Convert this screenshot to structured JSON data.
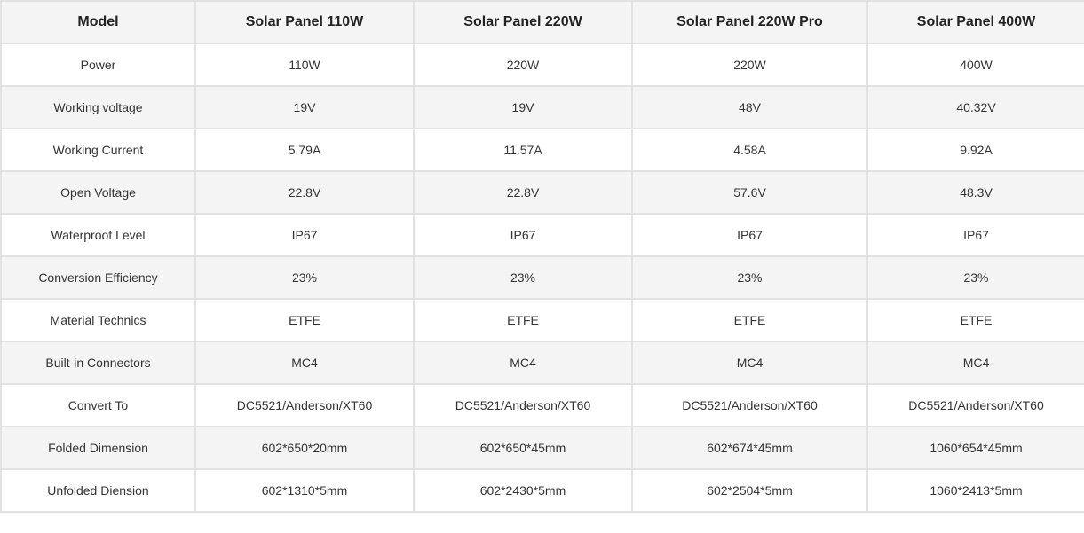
{
  "table": {
    "header": [
      "Model",
      "Solar Panel 110W",
      "Solar Panel 220W",
      "Solar Panel 220W Pro",
      "Solar Panel 400W"
    ],
    "rows": [
      [
        "Power",
        "110W",
        "220W",
        "220W",
        "400W"
      ],
      [
        "Working voltage",
        "19V",
        "19V",
        "48V",
        "40.32V"
      ],
      [
        "Working Current",
        "5.79A",
        "11.57A",
        "4.58A",
        "9.92A"
      ],
      [
        "Open Voltage",
        "22.8V",
        "22.8V",
        "57.6V",
        "48.3V"
      ],
      [
        "Waterproof Level",
        "IP67",
        "IP67",
        "IP67",
        "IP67"
      ],
      [
        "Conversion Efficiency",
        "23%",
        "23%",
        "23%",
        "23%"
      ],
      [
        "Material Technics",
        "ETFE",
        "ETFE",
        "ETFE",
        "ETFE"
      ],
      [
        "Built-in Connectors",
        "MC4",
        "MC4",
        "MC4",
        "MC4"
      ],
      [
        "Convert To",
        "DC5521/Anderson/XT60",
        "DC5521/Anderson/XT60",
        "DC5521/Anderson/XT60",
        "DC5521/Anderson/XT60"
      ],
      [
        "Folded Dimension",
        "602*650*20mm",
        "602*650*45mm",
        "602*674*45mm",
        "1060*654*45mm"
      ],
      [
        "Unfolded Diension",
        "602*1310*5mm",
        "602*2430*5mm",
        "602*2504*5mm",
        "1060*2413*5mm"
      ]
    ]
  }
}
